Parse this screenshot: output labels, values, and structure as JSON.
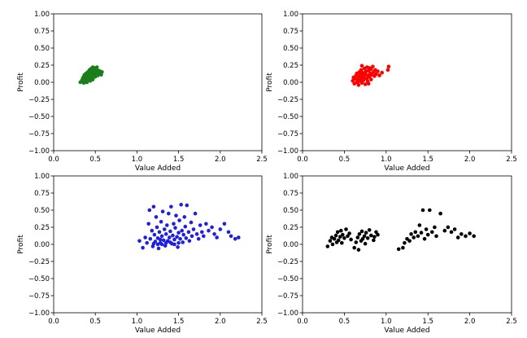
{
  "chart_data": [
    {
      "type": "scatter",
      "xlabel": "Value Added",
      "ylabel": "Profit",
      "xlim": [
        0.0,
        2.5
      ],
      "ylim": [
        -1.0,
        1.0
      ],
      "xticks": [
        "0.0",
        "0.5",
        "1.0",
        "1.5",
        "2.0",
        "2.5"
      ],
      "yticks": [
        "1.00",
        "0.75",
        "0.50",
        "0.25",
        "0.00",
        "−0.25",
        "−0.50",
        "−0.75",
        "−1.00"
      ],
      "grid": false,
      "color": "#1a7f1a",
      "points": [
        [
          0.32,
          0.0
        ],
        [
          0.34,
          0.03
        ],
        [
          0.35,
          0.06
        ],
        [
          0.36,
          -0.01
        ],
        [
          0.36,
          0.08
        ],
        [
          0.37,
          0.02
        ],
        [
          0.37,
          0.11
        ],
        [
          0.38,
          0.05
        ],
        [
          0.38,
          0.0
        ],
        [
          0.39,
          0.09
        ],
        [
          0.39,
          0.13
        ],
        [
          0.4,
          0.03
        ],
        [
          0.4,
          0.07
        ],
        [
          0.41,
          0.15
        ],
        [
          0.41,
          0.1
        ],
        [
          0.42,
          0.04
        ],
        [
          0.42,
          0.12
        ],
        [
          0.43,
          0.18
        ],
        [
          0.43,
          0.08
        ],
        [
          0.44,
          0.14
        ],
        [
          0.44,
          0.02
        ],
        [
          0.45,
          0.2
        ],
        [
          0.45,
          0.11
        ],
        [
          0.46,
          0.16
        ],
        [
          0.46,
          0.06
        ],
        [
          0.47,
          0.22
        ],
        [
          0.47,
          0.13
        ],
        [
          0.48,
          0.09
        ],
        [
          0.48,
          0.18
        ],
        [
          0.49,
          0.21
        ],
        [
          0.49,
          0.12
        ],
        [
          0.5,
          0.15
        ],
        [
          0.5,
          0.08
        ],
        [
          0.51,
          0.19
        ],
        [
          0.52,
          0.14
        ],
        [
          0.52,
          0.22
        ],
        [
          0.53,
          0.1
        ],
        [
          0.54,
          0.17
        ],
        [
          0.55,
          0.13
        ],
        [
          0.56,
          0.16
        ],
        [
          0.57,
          0.11
        ],
        [
          0.58,
          0.15
        ],
        [
          0.4,
          0.0
        ],
        [
          0.44,
          0.07
        ],
        [
          0.47,
          0.04
        ]
      ]
    },
    {
      "type": "scatter",
      "xlabel": "Value Added",
      "ylabel": "Profit",
      "xlim": [
        0.0,
        2.5
      ],
      "ylim": [
        -1.0,
        1.0
      ],
      "xticks": [
        "0.0",
        "0.5",
        "1.0",
        "1.5",
        "2.0",
        "2.5"
      ],
      "yticks": [
        "1.00",
        "0.75",
        "0.50",
        "0.25",
        "0.00",
        "−0.25",
        "−0.50",
        "−0.75",
        "−1.00"
      ],
      "grid": false,
      "color": "#ff0000",
      "points": [
        [
          0.6,
          0.02
        ],
        [
          0.61,
          0.07
        ],
        [
          0.62,
          -0.02
        ],
        [
          0.63,
          0.05
        ],
        [
          0.64,
          0.1
        ],
        [
          0.65,
          0.0
        ],
        [
          0.65,
          0.13
        ],
        [
          0.66,
          0.04
        ],
        [
          0.67,
          0.08
        ],
        [
          0.67,
          -0.04
        ],
        [
          0.68,
          0.15
        ],
        [
          0.69,
          0.02
        ],
        [
          0.69,
          0.11
        ],
        [
          0.7,
          0.06
        ],
        [
          0.7,
          0.18
        ],
        [
          0.71,
          -0.01
        ],
        [
          0.72,
          0.09
        ],
        [
          0.72,
          0.14
        ],
        [
          0.73,
          0.03
        ],
        [
          0.74,
          0.2
        ],
        [
          0.74,
          0.07
        ],
        [
          0.75,
          0.12
        ],
        [
          0.75,
          -0.03
        ],
        [
          0.76,
          0.16
        ],
        [
          0.77,
          0.05
        ],
        [
          0.77,
          0.22
        ],
        [
          0.78,
          0.1
        ],
        [
          0.78,
          0.01
        ],
        [
          0.79,
          0.17
        ],
        [
          0.8,
          0.08
        ],
        [
          0.8,
          0.21
        ],
        [
          0.81,
          0.13
        ],
        [
          0.82,
          0.04
        ],
        [
          0.82,
          0.19
        ],
        [
          0.83,
          0.11
        ],
        [
          0.84,
          0.23
        ],
        [
          0.85,
          0.15
        ],
        [
          0.86,
          0.09
        ],
        [
          0.87,
          0.18
        ],
        [
          0.88,
          0.12
        ],
        [
          0.9,
          0.16
        ],
        [
          0.92,
          0.1
        ],
        [
          0.95,
          0.14
        ],
        [
          1.02,
          0.18
        ],
        [
          1.03,
          0.23
        ],
        [
          0.71,
          0.24
        ],
        [
          0.66,
          0.0
        ],
        [
          0.79,
          -0.02
        ]
      ]
    },
    {
      "type": "scatter",
      "xlabel": "Value Added",
      "ylabel": "Profit",
      "xlim": [
        0.0,
        2.5
      ],
      "ylim": [
        -1.0,
        1.0
      ],
      "xticks": [
        "0.0",
        "0.5",
        "1.0",
        "1.5",
        "2.0",
        "2.5"
      ],
      "yticks": [
        "1.00",
        "0.75",
        "0.50",
        "0.25",
        "0.00",
        "−0.25",
        "−0.50",
        "−0.75",
        "−1.00"
      ],
      "grid": false,
      "color": "#1f1fe0",
      "points": [
        [
          1.03,
          0.05
        ],
        [
          1.07,
          -0.05
        ],
        [
          1.1,
          0.1
        ],
        [
          1.12,
          0.02
        ],
        [
          1.14,
          0.3
        ],
        [
          1.15,
          0.5
        ],
        [
          1.16,
          0.08
        ],
        [
          1.18,
          0.2
        ],
        [
          1.19,
          -0.03
        ],
        [
          1.2,
          0.55
        ],
        [
          1.21,
          0.14
        ],
        [
          1.22,
          0.04
        ],
        [
          1.23,
          0.4
        ],
        [
          1.24,
          0.25
        ],
        [
          1.25,
          0.09
        ],
        [
          1.26,
          -0.06
        ],
        [
          1.27,
          0.18
        ],
        [
          1.28,
          0.02
        ],
        [
          1.29,
          0.33
        ],
        [
          1.3,
          0.12
        ],
        [
          1.31,
          0.48
        ],
        [
          1.32,
          0.06
        ],
        [
          1.33,
          0.22
        ],
        [
          1.34,
          -0.02
        ],
        [
          1.35,
          0.15
        ],
        [
          1.36,
          0.28
        ],
        [
          1.37,
          0.05
        ],
        [
          1.38,
          0.45
        ],
        [
          1.39,
          0.1
        ],
        [
          1.4,
          0.19
        ],
        [
          1.41,
          0.55
        ],
        [
          1.42,
          0.01
        ],
        [
          1.43,
          0.13
        ],
        [
          1.44,
          0.3
        ],
        [
          1.45,
          0.07
        ],
        [
          1.46,
          0.24
        ],
        [
          1.47,
          0.42
        ],
        [
          1.48,
          0.11
        ],
        [
          1.49,
          -0.04
        ],
        [
          1.5,
          0.17
        ],
        [
          1.51,
          0.35
        ],
        [
          1.52,
          0.08
        ],
        [
          1.53,
          0.58
        ],
        [
          1.54,
          0.2
        ],
        [
          1.55,
          0.03
        ],
        [
          1.56,
          0.14
        ],
        [
          1.57,
          0.4
        ],
        [
          1.58,
          0.26
        ],
        [
          1.59,
          0.09
        ],
        [
          1.6,
          0.57
        ],
        [
          1.62,
          0.18
        ],
        [
          1.63,
          0.05
        ],
        [
          1.65,
          0.32
        ],
        [
          1.66,
          0.12
        ],
        [
          1.68,
          0.22
        ],
        [
          1.7,
          0.45
        ],
        [
          1.72,
          0.15
        ],
        [
          1.74,
          0.08
        ],
        [
          1.76,
          0.28
        ],
        [
          1.78,
          0.18
        ],
        [
          1.8,
          0.12
        ],
        [
          1.83,
          0.3
        ],
        [
          1.86,
          0.2
        ],
        [
          1.9,
          0.25
        ],
        [
          1.93,
          0.15
        ],
        [
          1.96,
          0.1
        ],
        [
          2.0,
          0.22
        ],
        [
          2.05,
          0.3
        ],
        [
          2.1,
          0.18
        ],
        [
          2.13,
          0.12
        ],
        [
          2.18,
          0.08
        ],
        [
          2.22,
          0.1
        ],
        [
          1.25,
          0.0
        ],
        [
          1.3,
          0.0
        ],
        [
          1.35,
          0.02
        ],
        [
          1.4,
          0.03
        ],
        [
          1.45,
          0.0
        ],
        [
          1.2,
          0.01
        ],
        [
          1.5,
          0.02
        ],
        [
          1.28,
          0.07
        ]
      ]
    },
    {
      "type": "scatter",
      "xlabel": "Value Added",
      "ylabel": "Profit",
      "xlim": [
        0.0,
        2.5
      ],
      "ylim": [
        -1.0,
        1.0
      ],
      "xticks": [
        "0.0",
        "0.5",
        "1.0",
        "1.5",
        "2.0",
        "2.5"
      ],
      "yticks": [
        "1.00",
        "0.75",
        "0.50",
        "0.25",
        "0.00",
        "−0.25",
        "−0.50",
        "−0.75",
        "−1.00"
      ],
      "grid": false,
      "color": "#000000",
      "points": [
        [
          0.3,
          -0.03
        ],
        [
          0.33,
          0.05
        ],
        [
          0.35,
          0.1
        ],
        [
          0.36,
          0.0
        ],
        [
          0.38,
          0.08
        ],
        [
          0.4,
          0.13
        ],
        [
          0.41,
          0.03
        ],
        [
          0.42,
          0.18
        ],
        [
          0.43,
          0.06
        ],
        [
          0.45,
          0.11
        ],
        [
          0.46,
          0.2
        ],
        [
          0.47,
          0.02
        ],
        [
          0.48,
          0.14
        ],
        [
          0.5,
          0.09
        ],
        [
          0.52,
          0.22
        ],
        [
          0.54,
          0.12
        ],
        [
          0.56,
          0.16
        ],
        [
          0.58,
          0.07
        ],
        [
          0.62,
          -0.05
        ],
        [
          0.64,
          0.03
        ],
        [
          0.66,
          0.1
        ],
        [
          0.67,
          -0.08
        ],
        [
          0.68,
          0.15
        ],
        [
          0.7,
          0.05
        ],
        [
          0.71,
          0.19
        ],
        [
          0.72,
          0.08
        ],
        [
          0.74,
          0.12
        ],
        [
          0.75,
          0.01
        ],
        [
          0.76,
          0.17
        ],
        [
          0.78,
          0.09
        ],
        [
          0.8,
          0.21
        ],
        [
          0.82,
          0.13
        ],
        [
          0.85,
          0.06
        ],
        [
          0.86,
          0.11
        ],
        [
          0.88,
          0.18
        ],
        [
          0.9,
          0.14
        ],
        [
          1.15,
          -0.07
        ],
        [
          1.2,
          -0.05
        ],
        [
          1.22,
          0.02
        ],
        [
          1.25,
          0.08
        ],
        [
          1.28,
          0.05
        ],
        [
          1.3,
          0.15
        ],
        [
          1.33,
          0.1
        ],
        [
          1.35,
          0.18
        ],
        [
          1.38,
          0.12
        ],
        [
          1.4,
          0.28
        ],
        [
          1.42,
          0.17
        ],
        [
          1.44,
          0.5
        ],
        [
          1.46,
          0.08
        ],
        [
          1.48,
          0.22
        ],
        [
          1.5,
          0.14
        ],
        [
          1.52,
          0.5
        ],
        [
          1.55,
          0.18
        ],
        [
          1.58,
          0.25
        ],
        [
          1.6,
          0.12
        ],
        [
          1.65,
          0.45
        ],
        [
          1.7,
          0.2
        ],
        [
          1.74,
          0.25
        ],
        [
          1.78,
          0.18
        ],
        [
          1.82,
          0.22
        ],
        [
          1.86,
          0.1
        ],
        [
          1.9,
          0.15
        ],
        [
          1.95,
          0.12
        ],
        [
          2.0,
          0.16
        ],
        [
          2.05,
          0.12
        ]
      ]
    }
  ]
}
